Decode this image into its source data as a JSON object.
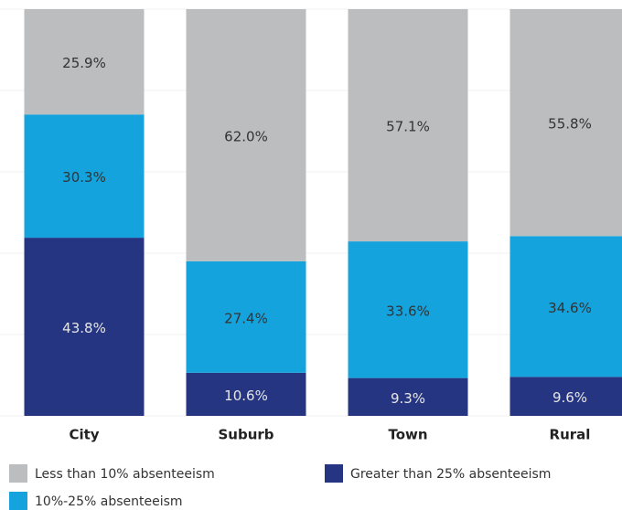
{
  "chart_data": {
    "type": "stacked_bar",
    "categories": [
      "City",
      "Suburb",
      "Town",
      "Rural"
    ],
    "series": [
      {
        "name": "Greater than 25% absenteeism",
        "color": "#253582",
        "values": [
          43.8,
          10.6,
          9.3,
          9.6
        ],
        "value_labels": [
          "43.8%",
          "10.6%",
          "9.3%",
          "9.6%"
        ]
      },
      {
        "name": "10%-25% absenteeism",
        "color": "#14a3dc",
        "values": [
          30.3,
          27.4,
          33.6,
          34.6
        ],
        "value_labels": [
          "30.3%",
          "27.4%",
          "33.6%",
          "34.6%"
        ]
      },
      {
        "name": "Less than 10% absenteeism",
        "color": "#bbbdbf",
        "values": [
          25.9,
          62.0,
          57.1,
          55.8
        ],
        "value_labels": [
          "25.9%",
          "62.0%",
          "57.1%",
          "55.8%"
        ]
      }
    ],
    "ylim": [
      0,
      100
    ],
    "yticks": [
      0,
      20,
      40,
      60,
      80,
      100
    ],
    "grid": true
  }
}
